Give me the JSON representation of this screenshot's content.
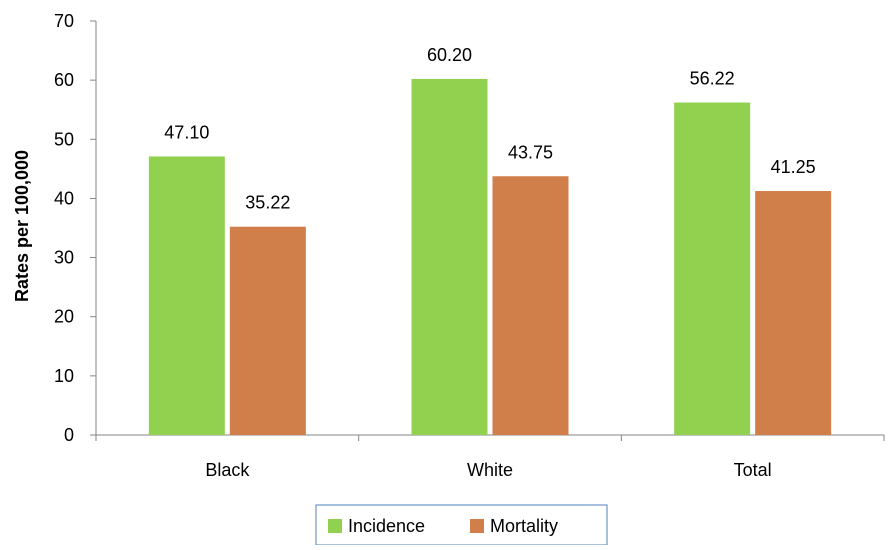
{
  "chart_data": {
    "type": "bar",
    "title": "",
    "xlabel": "",
    "ylabel": "Rates per 100,000",
    "categories": [
      "Black",
      "White",
      "Total"
    ],
    "series": [
      {
        "name": "Incidence",
        "values": [
          47.1,
          60.2,
          56.22
        ],
        "labels": [
          "47.10",
          "60.20",
          "56.22"
        ],
        "color": "#92D050"
      },
      {
        "name": "Mortality",
        "values": [
          35.22,
          43.75,
          41.25
        ],
        "labels": [
          "35.22",
          "43.75",
          "41.25"
        ],
        "color": "#D07E4A"
      }
    ],
    "ylim": [
      0,
      70
    ],
    "yticks": [
      "0",
      "10",
      "20",
      "30",
      "40",
      "50",
      "60",
      "70"
    ],
    "grid": false,
    "legend_position": "bottom"
  }
}
